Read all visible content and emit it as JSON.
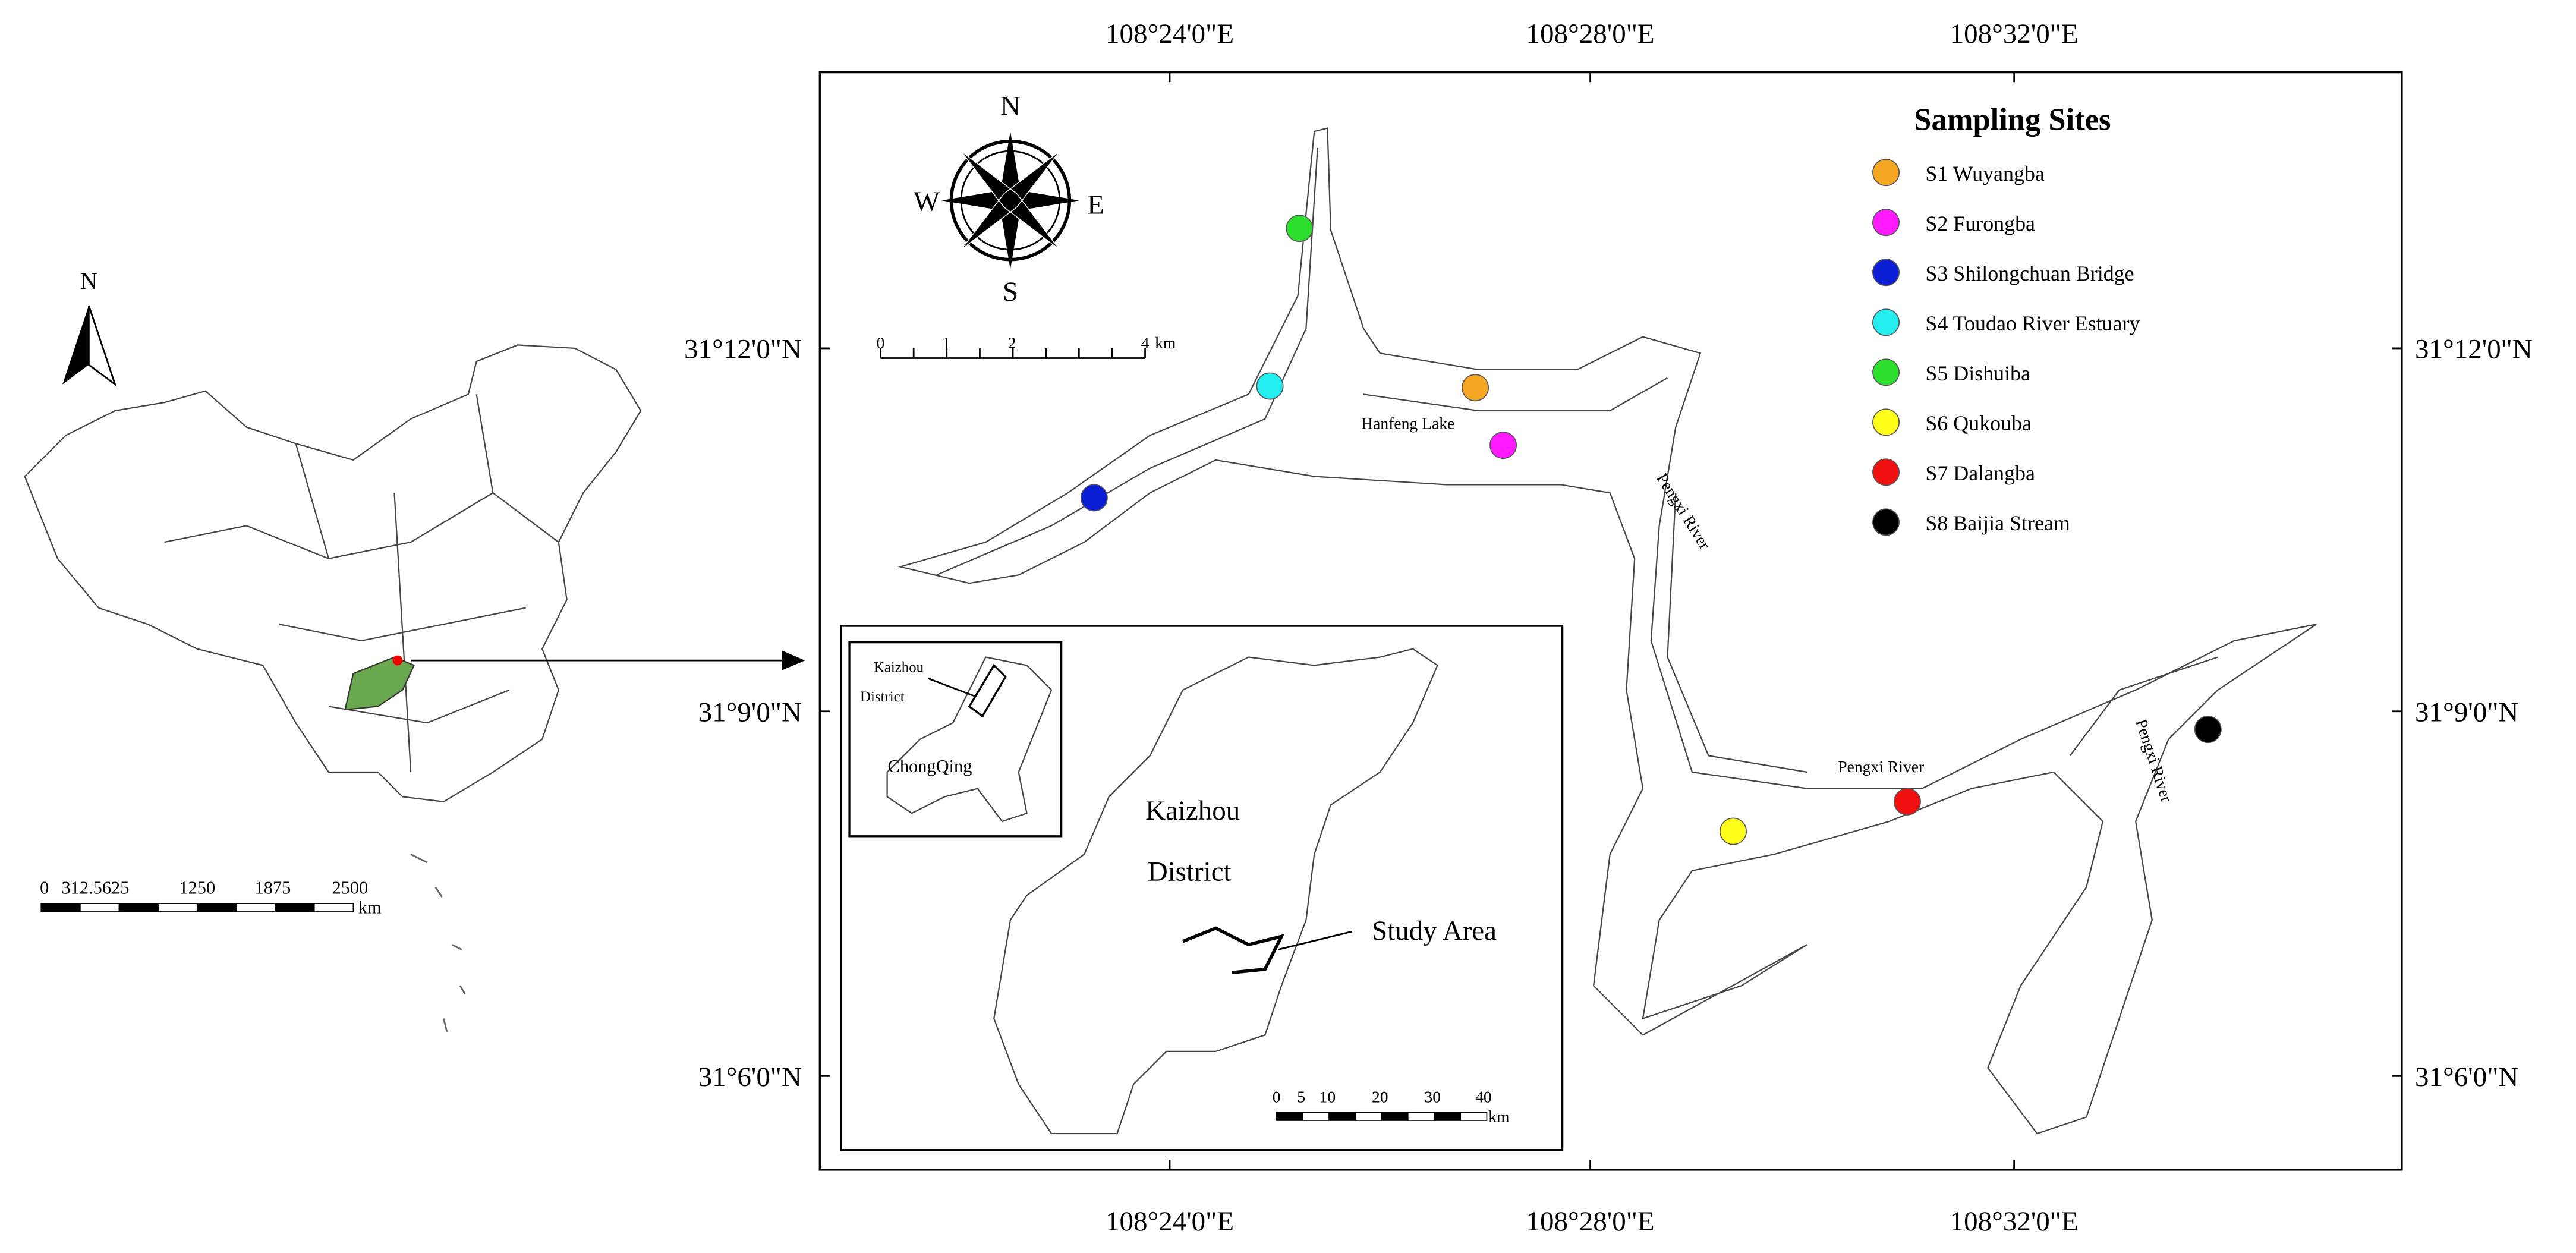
{
  "map": {
    "china": {
      "north": "N",
      "scale_labels": [
        "0",
        "312.5625",
        "1250",
        "1875",
        "2500"
      ],
      "scale_unit": "km"
    },
    "longitudes": [
      "108°24'0\"E",
      "108°28'0\"E",
      "108°32'0\"E"
    ],
    "latitudes": [
      "31°12'0\"N",
      "31°9'0\"N",
      "31°6'0\"N"
    ],
    "compass": {
      "n": "N",
      "s": "S",
      "e": "E",
      "w": "W"
    },
    "scale_labels": [
      "0",
      "1",
      "2",
      "4"
    ],
    "scale_unit": "km",
    "places": [
      "Hanfeng Lake",
      "Pengxi River",
      "Pengxi River",
      "Pengxi River"
    ],
    "legend": {
      "title": "Sampling Sites",
      "sites": [
        {
          "label": "S1 Wuyangba",
          "color": "#f5a623"
        },
        {
          "label": "S2 Furongba",
          "color": "#ff1aff"
        },
        {
          "label": "S3 Shilongchuan Bridge",
          "color": "#0a1fd6"
        },
        {
          "label": "S4 Toudao River Estuary",
          "color": "#22eef0"
        },
        {
          "label": "S5 Dishuiba",
          "color": "#2ee02e"
        },
        {
          "label": "S6 Qukouba",
          "color": "#ffff1a"
        },
        {
          "label": "S7 Dalangba",
          "color": "#f01010"
        },
        {
          "label": "S8 Baijia Stream",
          "color": "#000000"
        }
      ]
    },
    "inset": {
      "small_label": [
        "Kaizhou",
        "District"
      ],
      "province": "ChongQing",
      "district_label": [
        "Kaizhou",
        "District"
      ],
      "study_area": "Study Area",
      "scale_labels": [
        "0",
        "5",
        "10",
        "20",
        "30",
        "40"
      ],
      "scale_unit": "km"
    }
  }
}
